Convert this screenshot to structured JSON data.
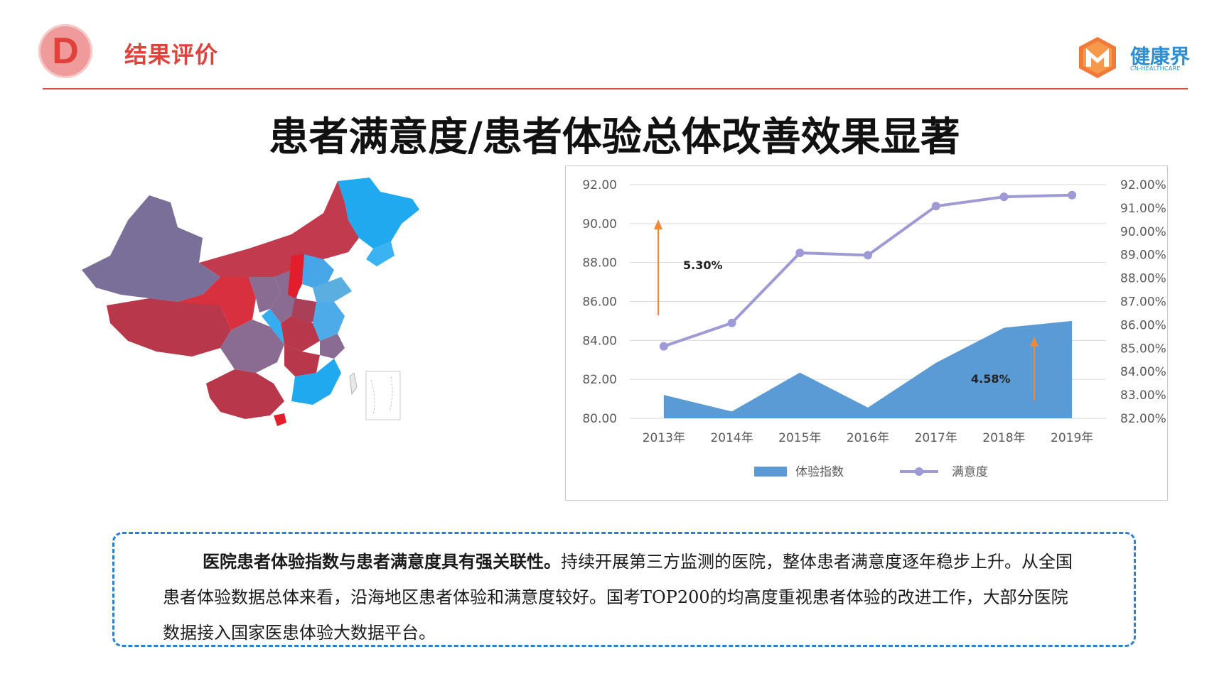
{
  "header": {
    "badge_letter": "D",
    "section_label": "结果评价",
    "logo_text": "健康界",
    "logo_sub": "CN-HEALTHCARE"
  },
  "colors": {
    "accent_red": "#e24a40",
    "badge_fill": "#ef9b9b",
    "bar_blue": "#5b9bd5",
    "line_purple": "#9e9ad6",
    "arrow_orange": "#f0883a",
    "note_border": "#2b7fd3"
  },
  "main_title": "患者满意度/患者体验总体改善效果显著",
  "map": {
    "description_icon": "china-map-icon"
  },
  "chart_data": {
    "type": "area+line",
    "categories": [
      "2013年",
      "2014年",
      "2015年",
      "2016年",
      "2017年",
      "2018年",
      "2019年"
    ],
    "series": [
      {
        "name": "体验指数",
        "kind": "area",
        "axis": "left",
        "values": [
          81.2,
          80.35,
          82.35,
          80.55,
          82.85,
          84.65,
          85.0
        ]
      },
      {
        "name": "满意度",
        "kind": "line",
        "axis": "right",
        "values": [
          0.8508,
          0.8608,
          0.8908,
          0.8898,
          0.9108,
          0.9148,
          0.9155
        ]
      }
    ],
    "left_axis": {
      "ylim": [
        80,
        92
      ],
      "ticks": [
        "80.00",
        "82.00",
        "84.00",
        "86.00",
        "88.00",
        "90.00",
        "92.00"
      ]
    },
    "right_axis": {
      "ylim": [
        0.82,
        0.92
      ],
      "ticks": [
        "82.00%",
        "83.00%",
        "84.00%",
        "85.00%",
        "86.00%",
        "87.00%",
        "88.00%",
        "89.00%",
        "90.00%",
        "91.00%",
        "92.00%"
      ]
    },
    "annotations": [
      {
        "text": "5.30%",
        "near": "left arrow"
      },
      {
        "text": "4.58%",
        "near": "right arrow"
      }
    ],
    "grid": true,
    "legend_position": "bottom"
  },
  "note": {
    "lead": "医院患者体验指数与患者满意度具有强关联性。",
    "body": "持续开展第三方监测的医院，整体患者满意度逐年稳步上升。从全国患者体验数据总体来看，沿海地区患者体验和满意度较好。国考TOP200的均高度重视患者体验的改进工作，大部分医院数据接入国家医患体验大数据平台。"
  }
}
